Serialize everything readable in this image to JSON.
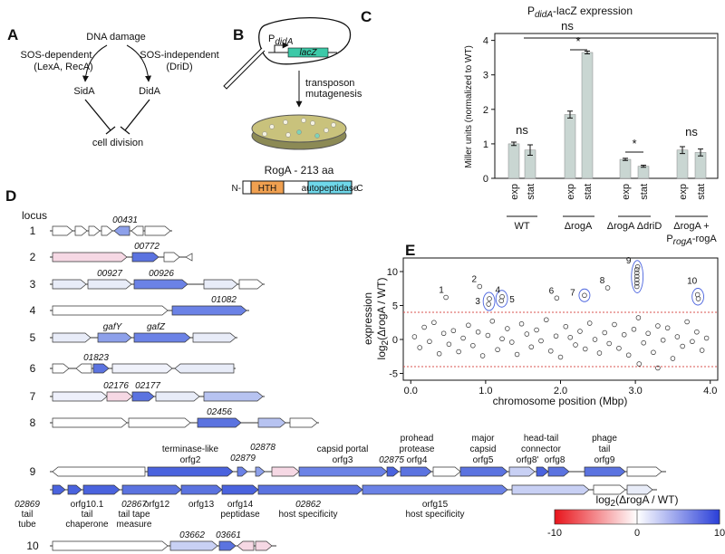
{
  "panel_a": {
    "label": "A",
    "root": "DNA damage",
    "left_path": [
      "SOS-dependent",
      "(LexA, RecA)"
    ],
    "right_path": [
      "SOS-independent",
      "(DriD)"
    ],
    "left_node": "SidA",
    "right_node": "DidA",
    "target": "cell division"
  },
  "panel_b": {
    "label": "B",
    "promoter": "P",
    "promoter_sub": "didA",
    "reporter": "lacZ",
    "step": [
      "transposon",
      "mutagenesis"
    ],
    "protein": "RogA - 213 aa",
    "n_term": "N-",
    "c_term": "-C",
    "domains": [
      "HTH",
      "autopeptidase"
    ]
  },
  "chart_data": [
    {
      "type": "bar",
      "panel": "C",
      "title": "P",
      "title_sub": "didA",
      "title_rest": "-lacZ expression",
      "y_label": "Miller units (normalized to WT)",
      "categories": [
        "exp",
        "stat",
        "exp",
        "stat",
        "exp",
        "stat",
        "exp",
        "stat"
      ],
      "values": [
        1.0,
        0.82,
        1.85,
        3.65,
        0.55,
        0.35,
        0.82,
        0.75
      ],
      "errors": [
        0.05,
        0.15,
        0.1,
        0.04,
        0.03,
        0.03,
        0.1,
        0.1
      ],
      "color": "#c9d6d2",
      "groups": [
        {
          "label": "WT"
        },
        {
          "label": "ΔrogA"
        },
        {
          "label": "ΔrogA ΔdriD"
        },
        {
          "label": "ΔrogA +",
          "label2": "P",
          "label2_sub": "rogA",
          "label2_rest": "-rogA"
        }
      ],
      "significance": [
        "ns",
        "*",
        "*",
        "ns",
        "ns"
      ],
      "ylim": [
        0,
        4.2
      ],
      "yticks": [
        0,
        1,
        2,
        3,
        4
      ]
    },
    {
      "type": "scatter",
      "panel": "E",
      "x_label": "chromosome position (Mbp)",
      "y_label": [
        "expression",
        "log",
        "2",
        "(ΔrogA / WT)"
      ],
      "x": [
        0.47,
        0.92,
        1.04,
        1.05,
        1.21,
        1.22,
        1.95,
        2.32,
        2.63,
        3.02,
        3.02,
        3.02,
        3.02,
        3.02,
        3.02,
        3.03,
        3.83,
        3.84,
        3.05,
        3.3,
        0.05,
        0.12,
        0.18,
        0.25,
        0.31,
        0.38,
        0.44,
        0.51,
        0.57,
        0.64,
        0.7,
        0.77,
        0.83,
        0.9,
        0.96,
        1.03,
        1.09,
        1.16,
        1.22,
        1.29,
        1.35,
        1.42,
        1.48,
        1.55,
        1.61,
        1.68,
        1.74,
        1.81,
        1.87,
        1.94,
        2.0,
        2.07,
        2.13,
        2.2,
        2.26,
        2.33,
        2.39,
        2.46,
        2.52,
        2.59,
        2.65,
        2.72,
        2.78,
        2.85,
        2.91,
        2.98,
        3.04,
        3.11,
        3.17,
        3.24,
        3.3,
        3.37,
        3.43,
        3.5,
        3.56,
        3.63,
        3.69,
        3.76,
        3.82,
        3.89,
        3.95
      ],
      "y": [
        6.2,
        7.8,
        5.2,
        6.0,
        5.7,
        6.3,
        6.1,
        6.5,
        7.6,
        7.8,
        8.3,
        8.8,
        9.3,
        9.8,
        10.3,
        10.7,
        6.6,
        6.0,
        -3.6,
        -4.2,
        0.4,
        -1.2,
        1.8,
        -0.3,
        2.5,
        -2.1,
        0.9,
        -0.7,
        1.3,
        -1.8,
        0.2,
        2.1,
        -0.9,
        1.1,
        -2.4,
        0.6,
        2.7,
        -1.5,
        0.1,
        1.6,
        -0.4,
        -2.2,
        2.3,
        0.8,
        -1.1,
        1.4,
        -0.2,
        2.9,
        -1.7,
        0.5,
        -2.6,
        1.9,
        0.3,
        -0.8,
        1.2,
        -1.4,
        2.4,
        0.0,
        -2.0,
        1.0,
        -0.6,
        2.2,
        -1.3,
        0.7,
        -2.3,
        1.5,
        3.2,
        -0.5,
        0.9,
        -1.9,
        2.0,
        -0.1,
        1.7,
        -2.8,
        0.4,
        -1.0,
        2.6,
        -0.3,
        1.1,
        -1.6,
        0.2
      ],
      "annotations": [
        "1",
        "2",
        "3",
        "4",
        "5",
        "6",
        "7",
        "8",
        "9",
        "10"
      ],
      "hlines": [
        4,
        -4
      ],
      "hline_color": "#d9534f",
      "xlim": [
        -0.1,
        4.1
      ],
      "xticks": [
        {
          "value": 0,
          "label": "0.0"
        },
        {
          "value": 1,
          "label": "1.0"
        },
        {
          "value": 2,
          "label": "2.0"
        },
        {
          "value": 3,
          "label": "3.0"
        },
        {
          "value": 4,
          "label": "4.0"
        }
      ],
      "ylim": [
        -6,
        12
      ],
      "yticks": [
        -5,
        0,
        5,
        10
      ]
    }
  ],
  "panel_d": {
    "label": "D",
    "title": "locus",
    "loci": [
      "1",
      "2",
      "3",
      "4",
      "5",
      "6",
      "7",
      "8",
      "9",
      "10"
    ],
    "gene_labels": [
      "00431",
      "00772",
      "00927",
      "00926",
      "01082",
      "gafY",
      "gafZ",
      "01823",
      "02176",
      "02177",
      "02456",
      "terminase-like",
      "orfg2",
      "02879",
      "02878",
      "capsid portal",
      "orfg3",
      "02875",
      "prohead",
      "protease",
      "orfg4",
      "major",
      "capsid",
      "orfg5",
      "head-tail",
      "connector",
      "orfg8'",
      "orfg8",
      "phage",
      "tail",
      "orfg9",
      "02869",
      "tail",
      "tube",
      "orfg10.1",
      "tail",
      "chaperone",
      "02867",
      "tail tape",
      "measure",
      "orfg12",
      "orfg13",
      "orfg14",
      "peptidase",
      "02862",
      "host specificity",
      "orfg15",
      "host specificity",
      "03662",
      "03661"
    ],
    "colorbar": {
      "title": "log",
      "title_sub": "2",
      "title_rest": "(ΔrogA / WT)",
      "lim": [
        -10,
        10
      ],
      "ticks": [
        -10,
        0,
        10
      ],
      "colors": [
        "#e8141b",
        "#ffffff",
        "#2a3fd8"
      ]
    }
  }
}
